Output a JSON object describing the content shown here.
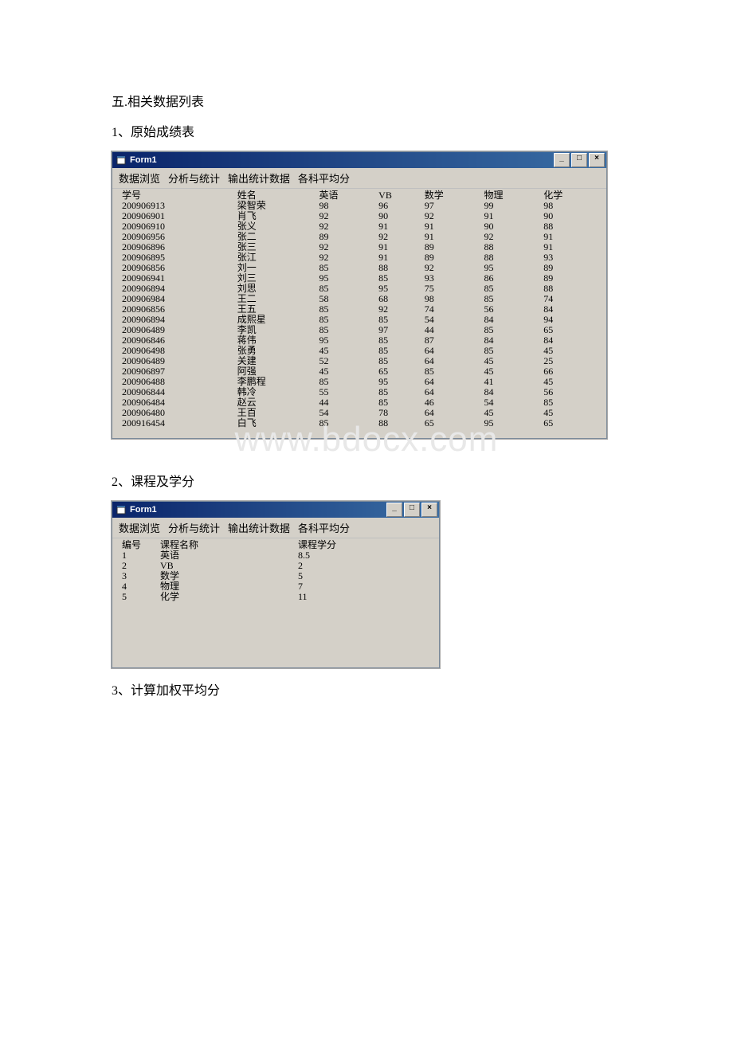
{
  "doc": {
    "heading_main": "五.相关数据列表",
    "heading_1": "1、原始成绩表",
    "heading_2": "2、课程及学分",
    "heading_3": "3、计算加权平均分",
    "watermark": "www.bdocx.com"
  },
  "window1": {
    "title": "Form1",
    "menu": [
      "数据浏览",
      "分析与统计",
      "输出统计数据",
      "各科平均分"
    ],
    "headers": [
      "学号",
      "姓名",
      "英语",
      "VB",
      "数学",
      "物理",
      "化学"
    ],
    "rows": [
      [
        "200906913",
        "梁智荣",
        "98",
        "96",
        "97",
        "99",
        "98"
      ],
      [
        "200906901",
        "肖飞",
        "92",
        "90",
        "92",
        "91",
        "90"
      ],
      [
        "200906910",
        "张义",
        "92",
        "91",
        "91",
        "90",
        "88"
      ],
      [
        "200906956",
        "张二",
        "89",
        "92",
        "91",
        "92",
        "91"
      ],
      [
        "200906896",
        "张三",
        "92",
        "91",
        "89",
        "88",
        "91"
      ],
      [
        "200906895",
        "张江",
        "92",
        "91",
        "89",
        "88",
        "93"
      ],
      [
        "200906856",
        "刘一",
        "85",
        "88",
        "92",
        "95",
        "89"
      ],
      [
        "200906941",
        "刘三",
        "95",
        "85",
        "93",
        "86",
        "89"
      ],
      [
        "200906894",
        "刘思",
        "85",
        "95",
        "75",
        "85",
        "88"
      ],
      [
        "200906984",
        "王二",
        "58",
        "68",
        "98",
        "85",
        "74"
      ],
      [
        "200906856",
        "王五",
        "85",
        "92",
        "74",
        "56",
        "84"
      ],
      [
        "200906894",
        "成熙星",
        "85",
        "85",
        "54",
        "84",
        "94"
      ],
      [
        "200906489",
        "李凯",
        "85",
        "97",
        "44",
        "85",
        "65"
      ],
      [
        "200906846",
        "蒋伟",
        "95",
        "85",
        "87",
        "84",
        "84"
      ],
      [
        "200906498",
        "张勇",
        "45",
        "85",
        "64",
        "85",
        "45"
      ],
      [
        "200906489",
        "关建",
        "52",
        "85",
        "64",
        "45",
        "25"
      ],
      [
        "200906897",
        "阿强",
        "45",
        "65",
        "85",
        "45",
        "66"
      ],
      [
        "200906488",
        "李鹏程",
        "85",
        "95",
        "64",
        "41",
        "45"
      ],
      [
        "200906844",
        "韩冷",
        "55",
        "85",
        "64",
        "84",
        "56"
      ],
      [
        "200906484",
        "赵云",
        "44",
        "85",
        "46",
        "54",
        "85"
      ],
      [
        "200906480",
        "王百",
        "54",
        "78",
        "64",
        "45",
        "45"
      ],
      [
        "200916454",
        "白飞",
        "85",
        "88",
        "65",
        "95",
        "65"
      ]
    ]
  },
  "window2": {
    "title": "Form1",
    "menu": [
      "数据浏览",
      "分析与统计",
      "输出统计数据",
      "各科平均分"
    ],
    "headers": [
      "编号",
      "课程名称",
      "课程学分"
    ],
    "rows": [
      [
        "1",
        "英语",
        "8.5"
      ],
      [
        "2",
        "VB",
        "2"
      ],
      [
        "3",
        "数学",
        "5"
      ],
      [
        "4",
        "物理",
        "7"
      ],
      [
        "5",
        "化学",
        "11"
      ]
    ]
  },
  "colors": {
    "page_bg": "#ffffff",
    "win_bg": "#d4d0c8",
    "titlebar_start": "#0a246a",
    "titlebar_end": "#3a6ea5",
    "text": "#000000",
    "watermark": "#e8e8e8"
  },
  "btns": {
    "min": "_",
    "max": "□",
    "close": "×"
  }
}
